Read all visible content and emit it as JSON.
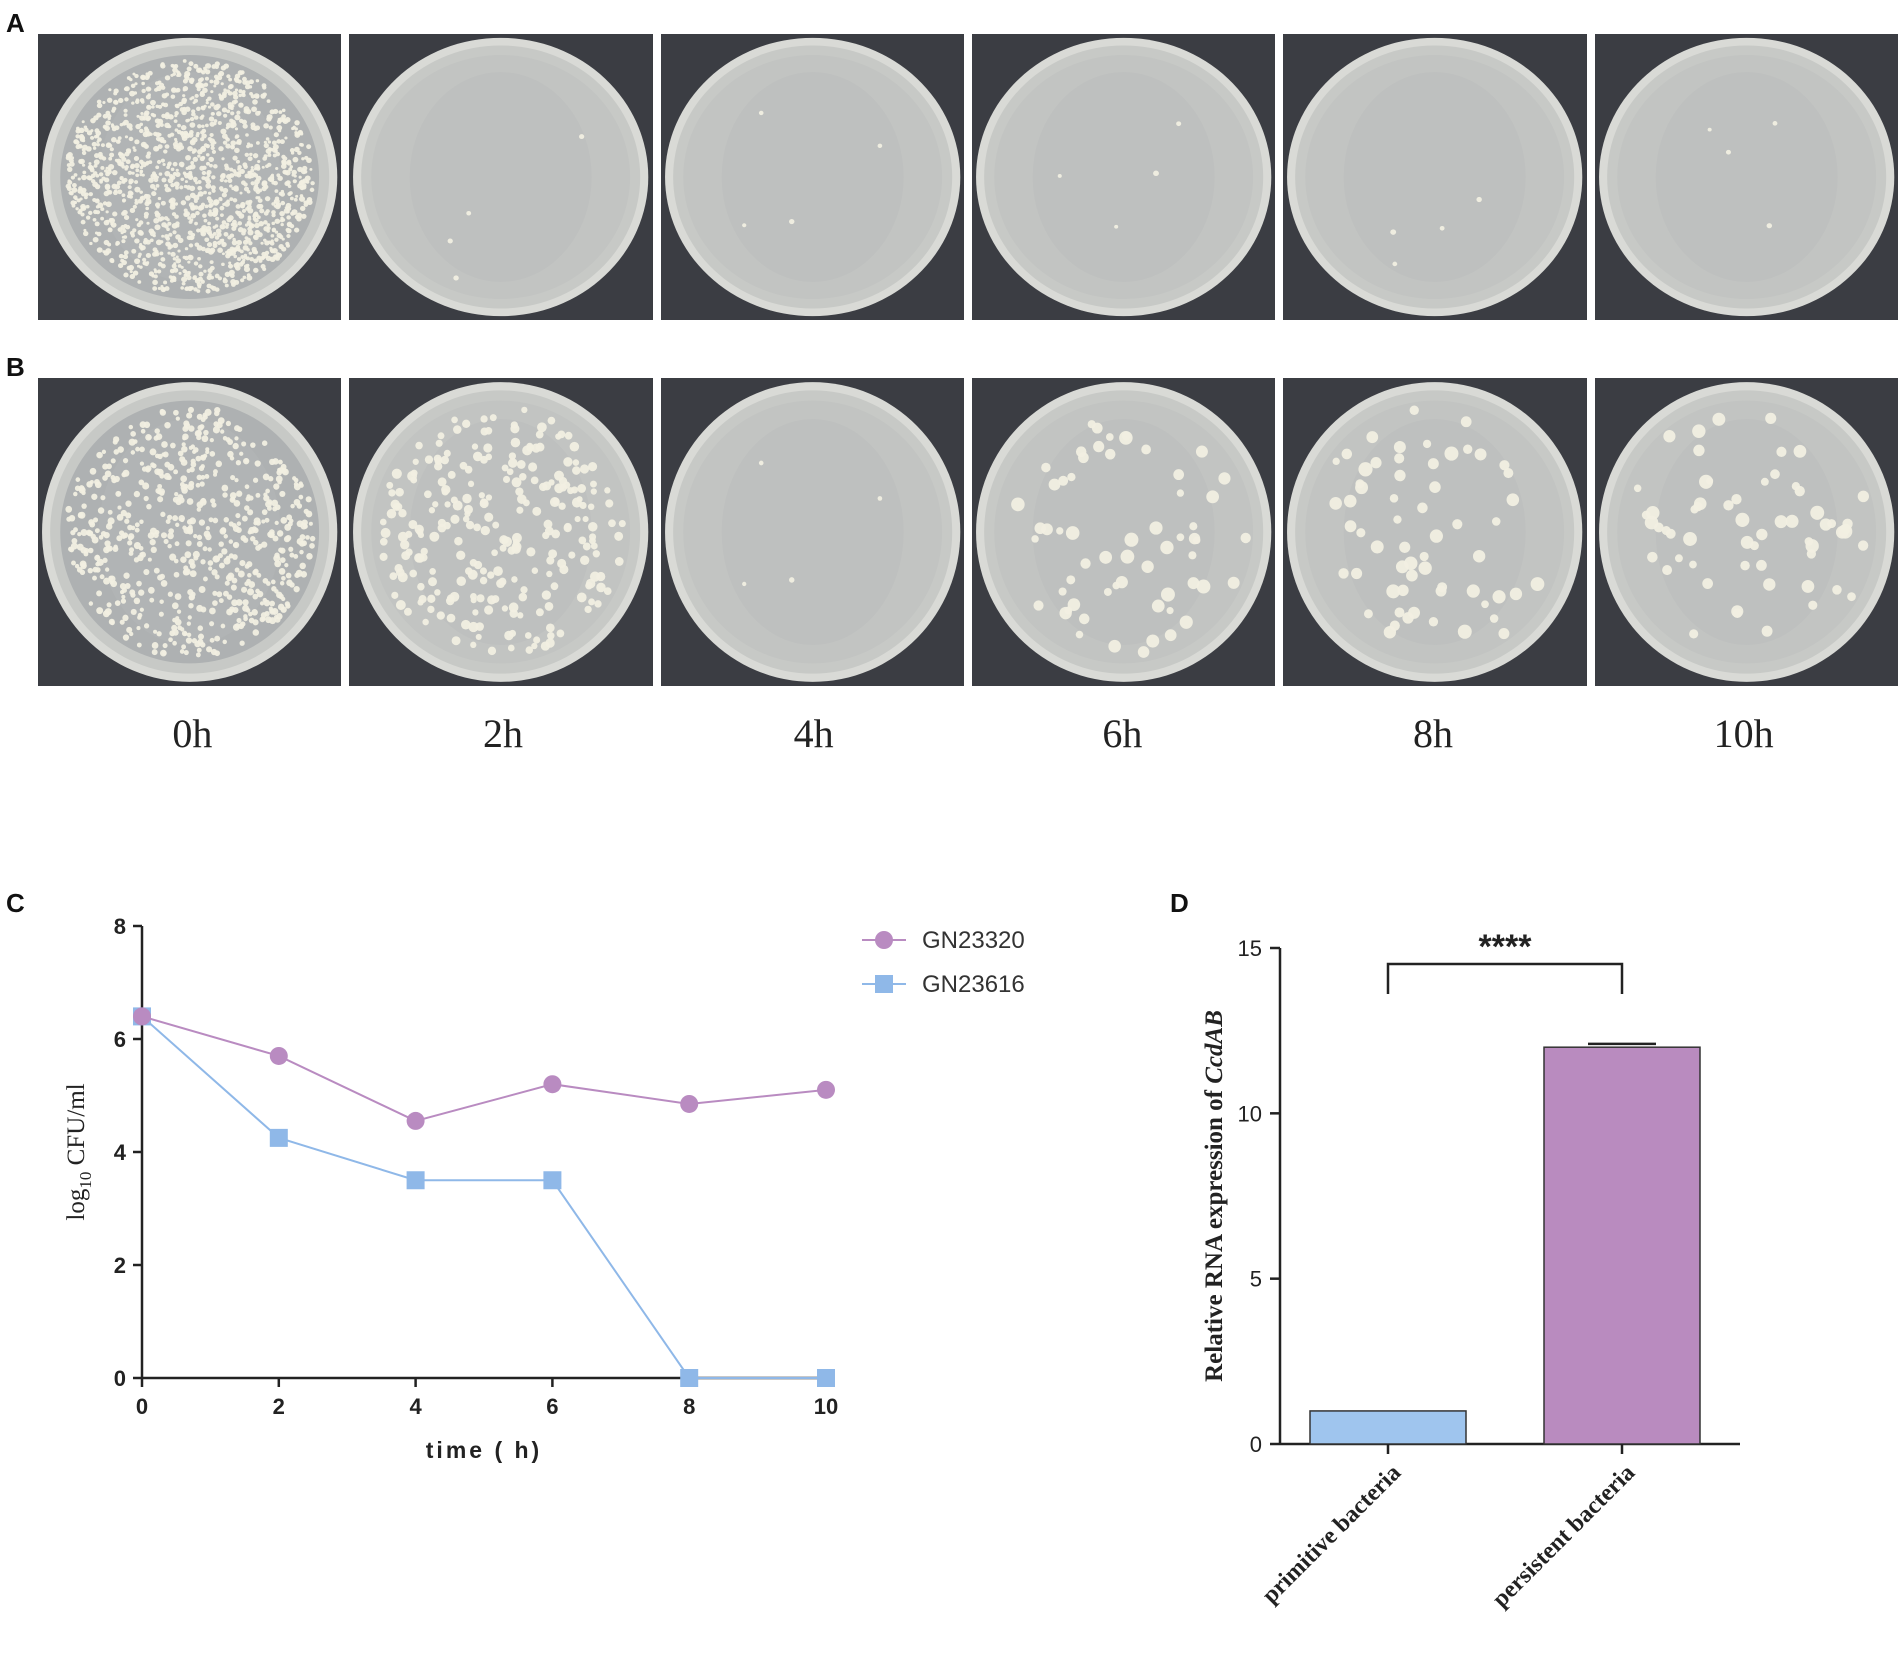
{
  "panels": {
    "a": "A",
    "b": "B",
    "c": "C",
    "d": "D"
  },
  "plates": {
    "time_labels": [
      "0h",
      "2h",
      "4h",
      "6h",
      "8h",
      "10h"
    ],
    "row_a_colonies": [
      "lawn",
      "few",
      "few",
      "few",
      "few",
      "few"
    ],
    "row_b_colonies": [
      "dense",
      "many",
      "few",
      "moderate",
      "moderate",
      "moderate"
    ]
  },
  "colors": {
    "gn23320": "#b98bc1",
    "gn23616": "#8fb8e8",
    "bar_primitive": "#9fc5ee",
    "bar_persistent": "#b98bbf",
    "axis": "#222222"
  },
  "chart_data": [
    {
      "type": "line",
      "title": "",
      "xlabel": "time ( h)",
      "ylabel_main": "log",
      "ylabel_sub": "10",
      "ylabel_rest": " CFU/ml",
      "x": [
        0,
        2,
        4,
        6,
        8,
        10
      ],
      "xlim": [
        0,
        10
      ],
      "ylim": [
        0,
        8
      ],
      "xticks": [
        "0",
        "2",
        "4",
        "6",
        "8",
        "10"
      ],
      "yticks": [
        "0",
        "2",
        "4",
        "6",
        "8"
      ],
      "grid": false,
      "legend": "top-right",
      "series": [
        {
          "name": "GN23320",
          "marker": "circle",
          "values": [
            6.4,
            5.7,
            4.55,
            5.2,
            4.85,
            5.1
          ]
        },
        {
          "name": "GN23616",
          "marker": "square",
          "values": [
            6.4,
            4.25,
            3.5,
            3.5,
            0.0,
            0.0
          ]
        }
      ]
    },
    {
      "type": "bar",
      "title": "",
      "ylabel": "Relative RNA expression of ",
      "ylabel_italic": "CcdAB",
      "categories": [
        "primitive bacteria",
        "persistent bacteria"
      ],
      "values": [
        1.0,
        12.0
      ],
      "error": [
        0.0,
        0.1
      ],
      "ylim": [
        0,
        15
      ],
      "yticks": [
        "0",
        "5",
        "10",
        "15"
      ],
      "grid": false,
      "significance": "****"
    }
  ]
}
